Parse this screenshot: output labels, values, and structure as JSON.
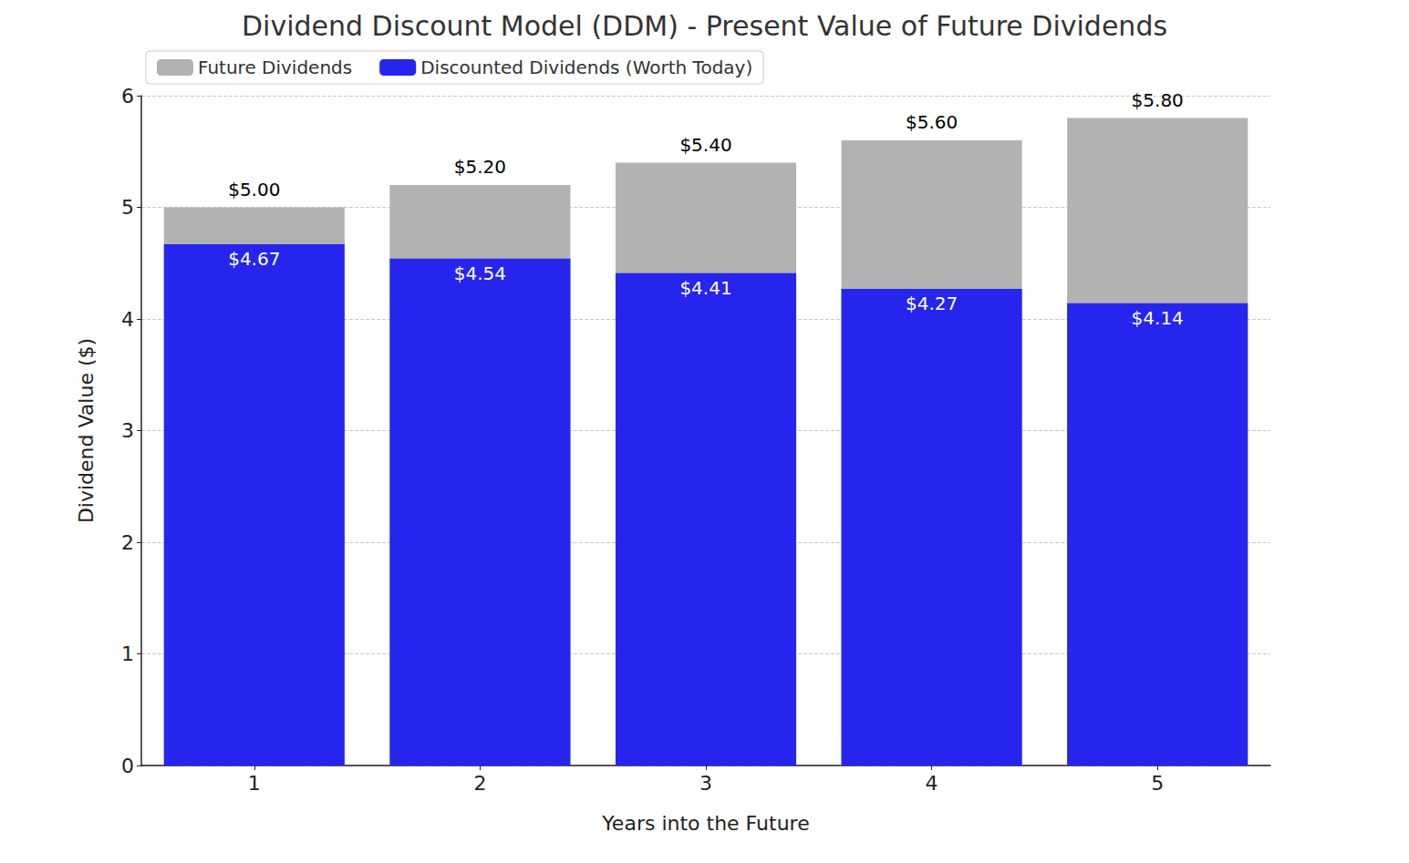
{
  "chart_data": {
    "type": "bar",
    "title": "Dividend Discount Model (DDM) - Present Value of Future Dividends",
    "x_label": "Years into the Future",
    "y_label": "Dividend Value ($)",
    "categories": [
      1,
      2,
      3,
      4,
      5
    ],
    "series": [
      {
        "name": "Future Dividends",
        "color": "#b2b2b2",
        "values": [
          5.0,
          5.2,
          5.4,
          5.6,
          5.8
        ],
        "value_labels": [
          "$5.00",
          "$5.20",
          "$5.40",
          "$5.60",
          "$5.80"
        ]
      },
      {
        "name": "Discounted Dividends (Worth Today)",
        "color": "#2525ee",
        "values": [
          4.67,
          4.54,
          4.41,
          4.27,
          4.14
        ],
        "value_labels": [
          "$4.67",
          "$4.54",
          "$4.41",
          "$4.27",
          "$4.14"
        ]
      }
    ],
    "ylim": [
      0,
      6
    ],
    "yticks": [
      0,
      1,
      2,
      3,
      4,
      5,
      6
    ],
    "grid": true,
    "legend": "upper left",
    "data_labels": true
  }
}
